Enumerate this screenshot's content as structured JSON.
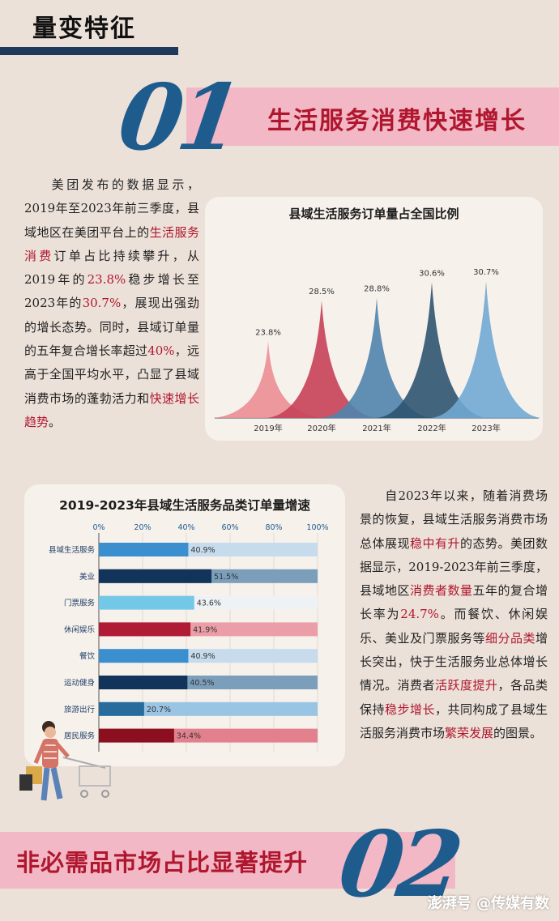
{
  "section": {
    "title": "量变特征"
  },
  "part1": {
    "number": "01",
    "title": "生活服务消费快速增长"
  },
  "para1": [
    {
      "t": "",
      "indent": true
    },
    {
      "t": "美团发布的数据显示，2019年至2023年前三季度，县域地区在美团平台上的"
    },
    {
      "t": "生活服务消费",
      "hl": true
    },
    {
      "t": "订单占比持续攀升，从2019年的"
    },
    {
      "t": "23.8%",
      "hl": true
    },
    {
      "t": "稳步增长至2023年的"
    },
    {
      "t": "30.7%",
      "hl": true
    },
    {
      "t": "，展现出强劲的增长态势。同时，县域订单量的五年复合增长率超过"
    },
    {
      "t": "40%",
      "hl": true
    },
    {
      "t": "，远高于全国平均水平，凸显了县域消费市场的蓬勃活力和"
    },
    {
      "t": "快速增长趋势",
      "hl": true
    },
    {
      "t": "。"
    }
  ],
  "para2": [
    {
      "t": "",
      "indent": true
    },
    {
      "t": "自2023年以来，随着消费场景的恢复，县域生活服务消费市场总体展现"
    },
    {
      "t": "稳中有升",
      "hl": true
    },
    {
      "t": "的态势。美团数据显示，2019-2023年前三季度，县域地区"
    },
    {
      "t": "消费者数量",
      "hl": true
    },
    {
      "t": "五年的复合增长率为"
    },
    {
      "t": "24.7%",
      "hl": true
    },
    {
      "t": "。而餐饮、休闲娱乐、美业及门票服务等"
    },
    {
      "t": "细分品类",
      "hl": true
    },
    {
      "t": "增长突出，快于生活服务业总体增长情况。消费者"
    },
    {
      "t": "活跃度提升",
      "hl": true
    },
    {
      "t": "，各品类保持"
    },
    {
      "t": "稳步增长",
      "hl": true
    },
    {
      "t": "，共同构成了县域生活服务消费市场"
    },
    {
      "t": "繁荣发展",
      "hl": true
    },
    {
      "t": "的图景。"
    }
  ],
  "chart_data": [
    {
      "type": "area",
      "title": "县域生活服务订单量占全国比例",
      "categories": [
        "2019年",
        "2020年",
        "2021年",
        "2022年",
        "2023年"
      ],
      "values": [
        23.8,
        28.5,
        28.8,
        30.6,
        30.7
      ],
      "labels": [
        "23.8%",
        "28.5%",
        "28.8%",
        "30.6%",
        "30.7%"
      ],
      "colors": [
        "#ea8e93",
        "#c64158",
        "#4f84ad",
        "#2d5470",
        "#71a8d3"
      ],
      "grid": false
    },
    {
      "type": "bar",
      "orientation": "horizontal",
      "stacked_to": 100,
      "title": "2019-2023年县域生活服务品类订单量增速",
      "xlim": [
        0,
        100
      ],
      "ticks": [
        "0%",
        "20%",
        "40%",
        "60%",
        "80%",
        "100%"
      ],
      "categories": [
        "县域生活服务",
        "美业",
        "门票服务",
        "休闲娱乐",
        "餐饮",
        "运动健身",
        "旅游出行",
        "居民服务"
      ],
      "values": [
        40.9,
        51.5,
        43.6,
        41.9,
        40.9,
        40.5,
        20.7,
        34.4
      ],
      "labels": [
        "40.9%",
        "51.5%",
        "43.6%",
        "41.9%",
        "40.9%",
        "40.5%",
        "20.7%",
        "34.4%"
      ],
      "colors": [
        "#3c8fcf",
        "#12335a",
        "#72c8e6",
        "#b01c35",
        "#3c8fcf",
        "#12335a",
        "#286c9e",
        "#8c0f20"
      ],
      "rest_colors": [
        "#c6dcec",
        "#7b9fbb",
        "#eef2f5",
        "#ec9ea8",
        "#c6dcec",
        "#7b9fbb",
        "#9ac4e3",
        "#e3808d"
      ],
      "grid": true
    }
  ],
  "part2": {
    "number": "02",
    "title": "非必需品市场占比显著提升"
  },
  "watermark": "澎湃号 @传媒有数"
}
